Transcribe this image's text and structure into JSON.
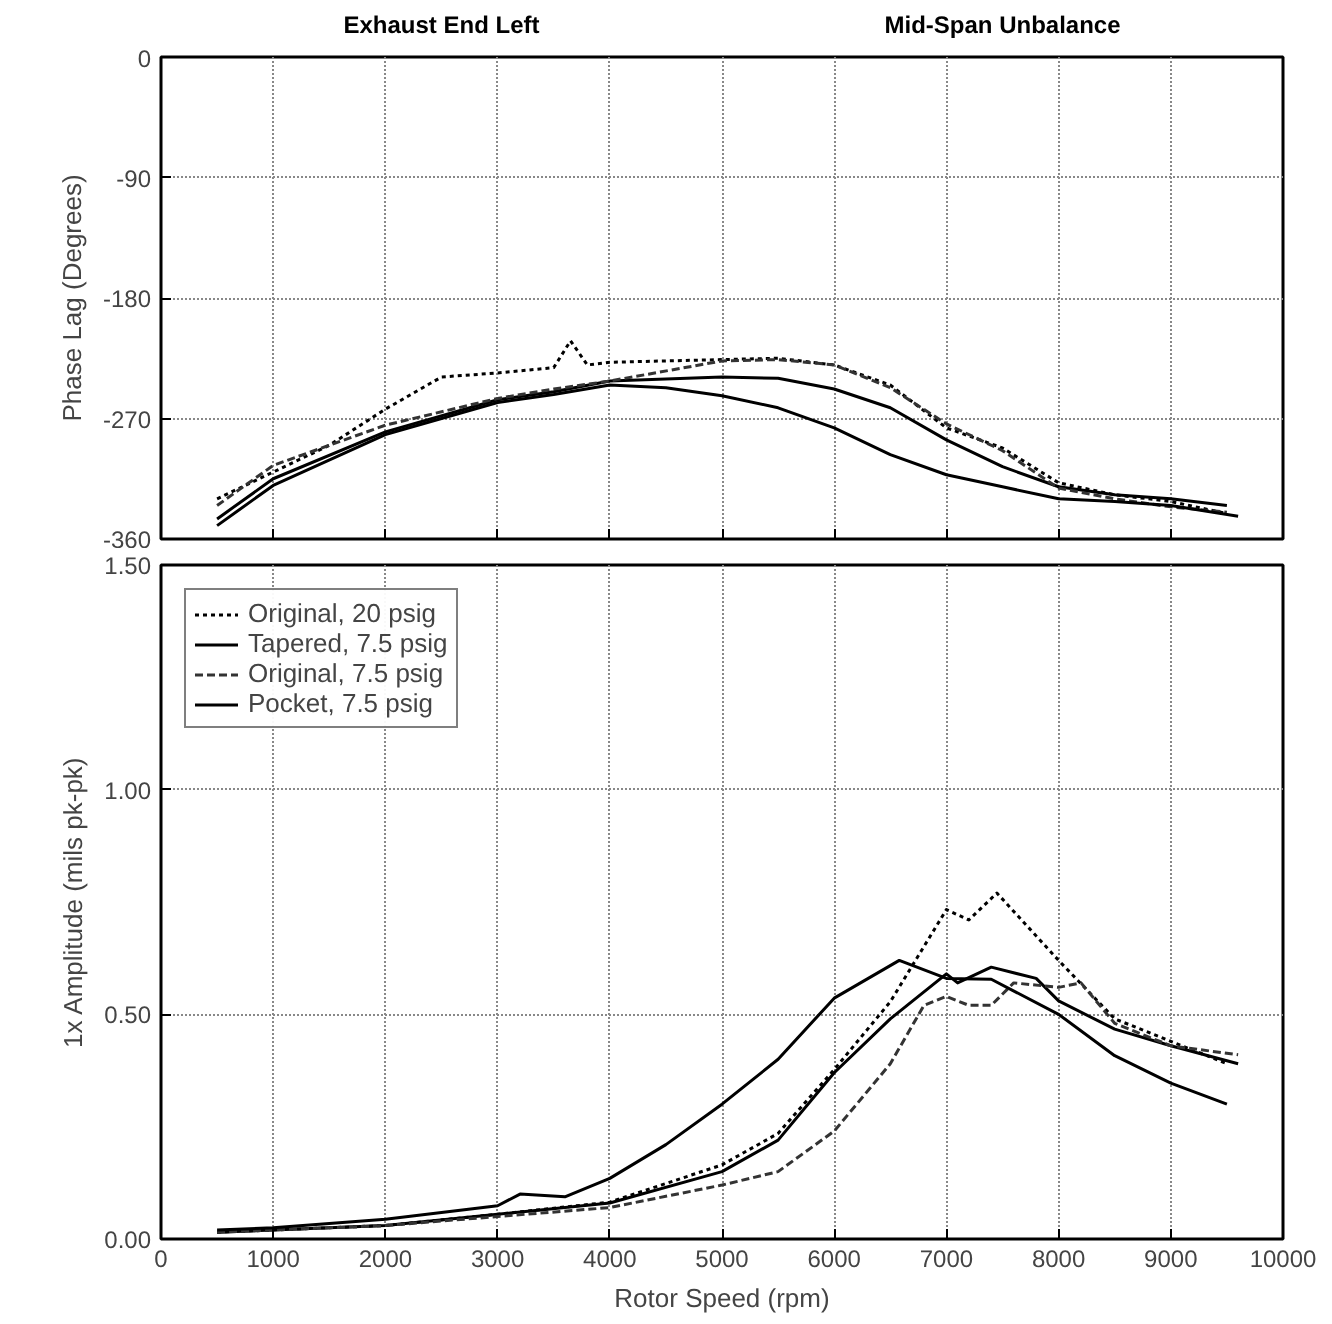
{
  "chart_data": [
    {
      "type": "line",
      "annotations": [
        "Exhaust End Left",
        "Mid-Span Unbalance"
      ],
      "ylabel": "Phase Lag (Degrees)",
      "xlim": [
        0,
        10000
      ],
      "xticks": [
        0,
        1000,
        2000,
        3000,
        4000,
        5000,
        6000,
        7000,
        8000,
        9000,
        10000
      ],
      "ylim": [
        -360,
        0
      ],
      "yticks": [
        0,
        -90,
        -180,
        -270,
        -360
      ],
      "grid": true,
      "tick_labels": "y",
      "legend": false,
      "series": [
        {
          "color": "#000000",
          "line_style": "dotted",
          "x": [
            500,
            1000,
            1500,
            2000,
            2500,
            3000,
            3500,
            3650,
            3800,
            4000,
            5000,
            5500,
            6000,
            6500,
            7000,
            7500,
            8000,
            8500,
            9000,
            9500
          ],
          "values": [
            -330,
            -310,
            -290,
            -263,
            -239,
            -236,
            -232,
            -212,
            -230,
            -228,
            -226,
            -225,
            -230,
            -245,
            -277,
            -292,
            -318,
            -327,
            -332,
            -341
          ]
        },
        {
          "color": "#000000",
          "line_style": "solid",
          "x": [
            500,
            1000,
            2000,
            3000,
            3500,
            4000,
            5000,
            5500,
            6000,
            6500,
            7000,
            7500,
            8000,
            8500,
            9000,
            9500
          ],
          "values": [
            -345,
            -315,
            -280,
            -256,
            -250,
            -242,
            -239,
            -240,
            -248,
            -262,
            -286,
            -306,
            -321,
            -327,
            -330,
            -335
          ]
        },
        {
          "color": "#333333",
          "line_style": "dashed",
          "x": [
            500,
            1000,
            2000,
            3000,
            3500,
            4000,
            5000,
            5500,
            6000,
            6500,
            7000,
            7500,
            8000,
            8500,
            9000,
            9500
          ],
          "values": [
            -335,
            -305,
            -275,
            -255,
            -248,
            -242,
            -227,
            -226,
            -230,
            -247,
            -274,
            -294,
            -322,
            -330,
            -336,
            -340
          ]
        },
        {
          "color": "#000000",
          "line_style": "solid",
          "x": [
            500,
            1000,
            2000,
            3000,
            3500,
            4000,
            4500,
            5000,
            5500,
            6000,
            6500,
            7000,
            7500,
            8000,
            8500,
            9000,
            9600
          ],
          "values": [
            -350,
            -320,
            -282,
            -258,
            -252,
            -245,
            -247,
            -253,
            -262,
            -277,
            -297,
            -312,
            -321,
            -330,
            -332,
            -335,
            -343
          ]
        }
      ]
    },
    {
      "type": "line",
      "xlabel": "Rotor Speed (rpm)",
      "ylabel": "1x Amplitude (mils pk-pk)",
      "xlim": [
        0,
        10000
      ],
      "xticks": [
        0,
        1000,
        2000,
        3000,
        4000,
        5000,
        6000,
        7000,
        8000,
        9000,
        10000
      ],
      "ylim": [
        0,
        1.5
      ],
      "yticks": [
        {
          "value": 0,
          "label": "0.00"
        },
        {
          "value": 0.5,
          "label": "0.50"
        },
        {
          "value": 1,
          "label": "1.00"
        },
        {
          "value": 1.5,
          "label": "1.50"
        }
      ],
      "grid": true,
      "legend": "top left",
      "series": [
        {
          "name": "Original, 20 psig",
          "color": "#000000",
          "line_style": "dotted",
          "x": [
            500,
            2000,
            3000,
            4000,
            5000,
            5500,
            6000,
            6500,
            7000,
            7200,
            7450,
            8000,
            8500,
            9000,
            9500
          ],
          "values": [
            0.015,
            0.03,
            0.055,
            0.082,
            0.165,
            0.235,
            0.377,
            0.528,
            0.733,
            0.71,
            0.77,
            0.62,
            0.49,
            0.44,
            0.39
          ]
        },
        {
          "name": "Tapered, 7.5 psig",
          "color": "#000000",
          "line_style": "solid",
          "x": [
            500,
            2000,
            3000,
            4000,
            5000,
            5500,
            6000,
            6500,
            7000,
            7100,
            7400,
            7800,
            8000,
            8500,
            9000,
            9600
          ],
          "values": [
            0.015,
            0.03,
            0.055,
            0.08,
            0.15,
            0.22,
            0.37,
            0.49,
            0.59,
            0.57,
            0.605,
            0.58,
            0.53,
            0.467,
            0.43,
            0.39
          ]
        },
        {
          "name": "Original, 7.5 psig",
          "color": "#333333",
          "line_style": "dashed",
          "x": [
            500,
            2000,
            3000,
            4000,
            5000,
            5500,
            6000,
            6500,
            6800,
            7000,
            7200,
            7400,
            7600,
            8000,
            8200,
            8500,
            9000,
            9600
          ],
          "values": [
            0.015,
            0.03,
            0.05,
            0.07,
            0.12,
            0.15,
            0.24,
            0.39,
            0.52,
            0.54,
            0.52,
            0.52,
            0.57,
            0.56,
            0.57,
            0.48,
            0.43,
            0.41
          ]
        },
        {
          "name": "Pocket, 7.5 psig",
          "color": "#000000",
          "line_style": "solid",
          "x": [
            500,
            1000,
            2000,
            3000,
            3200,
            3600,
            4000,
            4500,
            5000,
            5500,
            6000,
            6580,
            7000,
            7400,
            8000,
            8500,
            9000,
            9500
          ],
          "values": [
            0.02,
            0.025,
            0.044,
            0.074,
            0.1,
            0.094,
            0.135,
            0.21,
            0.3,
            0.4,
            0.536,
            0.62,
            0.58,
            0.578,
            0.5,
            0.408,
            0.347,
            0.3
          ]
        }
      ]
    }
  ]
}
